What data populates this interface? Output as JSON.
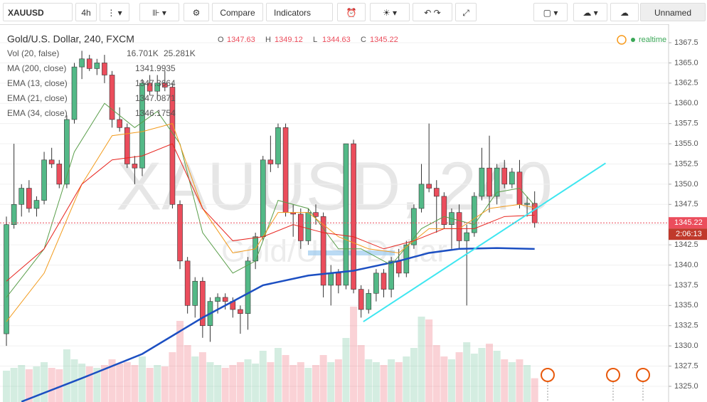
{
  "toolbar": {
    "symbol": "XAUUSD",
    "interval": "4h",
    "buttons": [
      "Compare",
      "Indicators"
    ],
    "layout": "Unnamed"
  },
  "chart_data": {
    "type": "candlestick",
    "title": "Gold/U.S. Dollar, 240, FXCM",
    "watermark": "XAUUSD, 240",
    "watermark_sub": "Gold/U.S. Dollar",
    "status": "realtime",
    "ohlc_labels": [
      "O",
      "H",
      "L",
      "C"
    ],
    "open": [
      1331.5,
      1345,
      1347.5,
      1349.5,
      1347,
      1348,
      1353,
      1352.5,
      1350,
      1358,
      1364.5,
      1365.5,
      1364.3,
      1365,
      1363.5,
      1358,
      1357,
      1352.5,
      1352,
      1362.5,
      1361.5,
      1362.5,
      1362,
      1347.5,
      1340.5,
      1335,
      1338,
      1332.5,
      1335.5,
      1336,
      1335.5,
      1334.5,
      1334,
      1340.5,
      1343.5,
      1353,
      1352.5,
      1357,
      1346.5,
      1346.3,
      1343,
      1346.5,
      1346,
      1337.5,
      1339,
      1337.5,
      1355,
      1337,
      1334.5,
      1336.5,
      1339,
      1337,
      1340.5,
      1339,
      1342.5,
      1347,
      1350,
      1349.5,
      1348.5,
      1345,
      1346.5,
      1343,
      1344,
      1348.5,
      1352,
      1348.5,
      1352,
      1350,
      1351.5,
      1347.5,
      1347.63
    ],
    "high": [
      1346,
      1355,
      1350,
      1350.5,
      1348.5,
      1354,
      1354.5,
      1353,
      1358.5,
      1365,
      1366.5,
      1366,
      1365.5,
      1366,
      1364,
      1359.5,
      1357.5,
      1353.5,
      1363,
      1363.5,
      1363.5,
      1364,
      1362.5,
      1348,
      1341,
      1338.5,
      1338.5,
      1336,
      1336.5,
      1336.5,
      1336,
      1335,
      1341,
      1344,
      1353.5,
      1356,
      1357.5,
      1357.5,
      1347.5,
      1347,
      1347,
      1347.5,
      1346.5,
      1340,
      1339.5,
      1355,
      1355.5,
      1337.5,
      1337,
      1339.5,
      1339.5,
      1341,
      1342,
      1343,
      1347.5,
      1352.5,
      1357.5,
      1350.5,
      1349,
      1347,
      1347.5,
      1345,
      1349,
      1354.5,
      1356,
      1352.5,
      1353,
      1352,
      1353,
      1348.5,
      1349.12
    ],
    "low": [
      1330,
      1344.5,
      1346,
      1346.5,
      1346,
      1347.5,
      1352,
      1349.5,
      1349.5,
      1357.5,
      1363,
      1364,
      1363.5,
      1362.5,
      1357,
      1356.5,
      1352,
      1350,
      1351,
      1361,
      1360.5,
      1361.5,
      1347,
      1339.5,
      1334,
      1333.5,
      1331,
      1330.5,
      1334,
      1334.5,
      1333.5,
      1331.5,
      1332,
      1339.5,
      1343,
      1351.5,
      1352,
      1346,
      1343.5,
      1342,
      1342.5,
      1345,
      1336,
      1335,
      1336.5,
      1337,
      1336.5,
      1333.5,
      1334,
      1335.5,
      1336,
      1336,
      1338.5,
      1338.5,
      1342,
      1346.5,
      1349,
      1344,
      1344.5,
      1342,
      1342,
      1335,
      1343.5,
      1348,
      1346.5,
      1347.5,
      1349.5,
      1349.5,
      1347,
      1346,
      1344.63
    ],
    "close": [
      1345,
      1347.5,
      1349.5,
      1347,
      1348,
      1353,
      1352.5,
      1350,
      1358,
      1364.5,
      1365.5,
      1364.3,
      1365,
      1363.5,
      1358,
      1357,
      1352.5,
      1352,
      1362.5,
      1361.5,
      1362.5,
      1362,
      1347.5,
      1340.5,
      1335,
      1338,
      1332.5,
      1335.5,
      1336,
      1335.5,
      1334.5,
      1334,
      1340.5,
      1343.5,
      1353,
      1352.5,
      1357,
      1346.5,
      1346.3,
      1343,
      1346.5,
      1346,
      1337.5,
      1339,
      1337.5,
      1355,
      1337,
      1334.5,
      1336.5,
      1339,
      1337,
      1340.5,
      1339,
      1342.5,
      1347,
      1350,
      1349.5,
      1348.5,
      1345,
      1346.5,
      1343,
      1344,
      1348.5,
      1352,
      1348.5,
      1352,
      1350,
      1351.5,
      1347.5,
      1347.63,
      1345.22
    ],
    "volume": [
      22,
      24,
      26,
      23,
      25,
      28,
      24,
      23,
      37,
      30,
      27,
      25,
      24,
      26,
      30,
      27,
      28,
      26,
      32,
      24,
      26,
      25,
      35,
      57,
      40,
      32,
      35,
      28,
      26,
      24,
      26,
      28,
      30,
      27,
      36,
      28,
      38,
      33,
      26,
      28,
      24,
      26,
      33,
      28,
      30,
      45,
      67,
      40,
      30,
      28,
      26,
      30,
      28,
      32,
      38,
      60,
      58,
      40,
      32,
      30,
      35,
      42,
      34,
      38,
      41,
      36,
      30,
      28,
      30,
      26,
      16.701
    ],
    "up_color": "#53b987",
    "down_color": "#eb4d5c",
    "xlim": [
      -0.85,
      87.75
    ],
    "ylim": [
      1323.06,
      1369.79
    ],
    "volume_lim": [
      0,
      80
    ],
    "yticks": [
      {
        "value": 1325,
        "label": "1325.0"
      },
      {
        "value": 1327.5,
        "label": "1327.5"
      },
      {
        "value": 1330,
        "label": "1330.0"
      },
      {
        "value": 1332.5,
        "label": "1332.5"
      },
      {
        "value": 1335,
        "label": "1335.0"
      },
      {
        "value": 1337.5,
        "label": "1337.5"
      },
      {
        "value": 1340,
        "label": "1340.0"
      },
      {
        "value": 1342.5,
        "label": "1342.5"
      },
      {
        "value": 1345,
        "label": "1345.0"
      },
      {
        "value": 1347.5,
        "label": "1347.5"
      },
      {
        "value": 1350,
        "label": "1350.0"
      },
      {
        "value": 1352.5,
        "label": "1352.5"
      },
      {
        "value": 1355,
        "label": "1355.0"
      },
      {
        "value": 1357.5,
        "label": "1357.5"
      },
      {
        "value": 1360,
        "label": "1360.0"
      },
      {
        "value": 1362.5,
        "label": "1362.5"
      },
      {
        "value": 1365,
        "label": "1365.0"
      },
      {
        "value": 1367.5,
        "label": "1367.5"
      }
    ],
    "grid": true,
    "countdown": "2:06:13",
    "vol_legend": {
      "name": "Vol (20, false)",
      "value_labels": [
        "16.701K",
        "25.281K"
      ],
      "colors": [
        "#d9534f",
        "#1e88e5"
      ]
    },
    "lines": [
      {
        "name": "MA (200, close)",
        "color": "#1c4fc2",
        "width": 2.5,
        "x": [
          2,
          10,
          18,
          26,
          34,
          40,
          46,
          52,
          56,
          60,
          65,
          70
        ],
        "values": [
          1323.1,
          1326,
          1329,
          1333.5,
          1337.5,
          1338.7,
          1339.3,
          1340.5,
          1341.5,
          1342,
          1342.1,
          1341.9935
        ]
      },
      {
        "name": "EMA (13, close)",
        "color": "#5a9e4b",
        "width": 1,
        "x": [
          0,
          5,
          9,
          13,
          17,
          20,
          23,
          26,
          30,
          33,
          36,
          40,
          44,
          47,
          51,
          55,
          58,
          62,
          65,
          68,
          70
        ],
        "values": [
          1336,
          1342,
          1354,
          1360,
          1357,
          1359,
          1355,
          1344,
          1339,
          1340.5,
          1348,
          1347,
          1342,
          1342,
          1340,
          1344.5,
          1346,
          1345,
          1349,
          1349.5,
          1347.3664
        ]
      },
      {
        "name": "EMA (21, close)",
        "color": "#f29b1d",
        "width": 1,
        "x": [
          0,
          5,
          10,
          14,
          18,
          22,
          26,
          30,
          33,
          36,
          40,
          44,
          48,
          52,
          56,
          60,
          64,
          68,
          70
        ],
        "values": [
          1333,
          1339,
          1350,
          1356,
          1356.5,
          1357.5,
          1347,
          1341.5,
          1342,
          1346.5,
          1346.5,
          1343.5,
          1342,
          1341.5,
          1344.5,
          1344.5,
          1347,
          1347.5,
          1347.0871
        ]
      },
      {
        "name": "EMA (34, close)",
        "color": "#e8251f",
        "width": 1,
        "x": [
          0,
          5,
          10,
          14,
          18,
          22,
          26,
          30,
          34,
          38,
          42,
          46,
          50,
          54,
          58,
          62,
          66,
          70
        ],
        "values": [
          1338,
          1342,
          1350,
          1353,
          1353.5,
          1355,
          1347,
          1343,
          1343.5,
          1345,
          1344,
          1343.5,
          1342,
          1343,
          1344.5,
          1344.5,
          1346,
          1346.1754
        ]
      }
    ],
    "trendline": {
      "color": "#3ee6f0",
      "x": [
        47.3,
        79.4
      ],
      "values": [
        1333,
        1352.6
      ]
    }
  }
}
